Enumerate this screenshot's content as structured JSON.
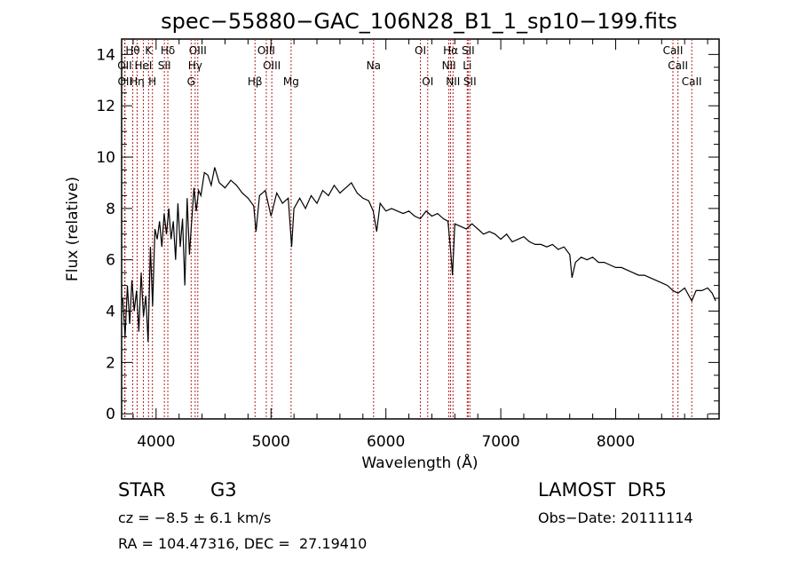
{
  "chart_data": {
    "type": "line",
    "title": "spec−55880−GAC_106N28_B1_1_sp10−199.fits",
    "xlabel": "Wavelength (Å)",
    "ylabel": "Flux (relative)",
    "xlim": [
      3700,
      8900
    ],
    "ylim": [
      -0.2,
      14.6
    ],
    "x_ticks": [
      4000,
      5000,
      6000,
      7000,
      8000
    ],
    "x_tick_labels": [
      "4000",
      "5000",
      "6000",
      "7000",
      "8000"
    ],
    "y_ticks": [
      0,
      2,
      4,
      6,
      8,
      10,
      12,
      14
    ],
    "y_tick_labels": [
      "0",
      "2",
      "4",
      "6",
      "8",
      "10",
      "12",
      "14"
    ],
    "line_color": "#000000",
    "marker_color": "#b22222",
    "spectrum": {
      "x": [
        3710,
        3730,
        3750,
        3770,
        3790,
        3810,
        3830,
        3850,
        3870,
        3890,
        3910,
        3930,
        3950,
        3970,
        3990,
        4010,
        4030,
        4050,
        4070,
        4090,
        4110,
        4130,
        4150,
        4170,
        4190,
        4210,
        4230,
        4250,
        4270,
        4290,
        4310,
        4330,
        4350,
        4370,
        4390,
        4420,
        4450,
        4480,
        4510,
        4550,
        4600,
        4650,
        4700,
        4750,
        4800,
        4850,
        4870,
        4900,
        4950,
        5000,
        5050,
        5100,
        5150,
        5180,
        5200,
        5250,
        5300,
        5350,
        5400,
        5450,
        5500,
        5550,
        5600,
        5650,
        5700,
        5750,
        5800,
        5850,
        5890,
        5920,
        5950,
        6000,
        6050,
        6100,
        6150,
        6200,
        6250,
        6300,
        6350,
        6400,
        6450,
        6500,
        6540,
        6563,
        6580,
        6600,
        6650,
        6700,
        6750,
        6800,
        6850,
        6900,
        6950,
        7000,
        7050,
        7100,
        7150,
        7200,
        7250,
        7300,
        7350,
        7400,
        7450,
        7500,
        7550,
        7600,
        7620,
        7650,
        7700,
        7750,
        7800,
        7850,
        7900,
        7950,
        8000,
        8050,
        8100,
        8150,
        8200,
        8250,
        8300,
        8350,
        8400,
        8450,
        8498,
        8542,
        8600,
        8662,
        8700,
        8750,
        8800,
        8840,
        8860,
        8870
      ],
      "y": [
        4.5,
        3.0,
        5.0,
        3.5,
        5.2,
        4.0,
        4.8,
        3.2,
        5.5,
        3.8,
        4.6,
        2.8,
        6.5,
        4.2,
        7.2,
        6.8,
        7.5,
        6.5,
        7.8,
        7.0,
        8.0,
        6.8,
        7.5,
        6.0,
        8.2,
        6.5,
        7.6,
        5.0,
        8.4,
        6.2,
        7.5,
        8.8,
        7.9,
        8.7,
        8.5,
        9.4,
        9.3,
        8.9,
        9.6,
        9.0,
        8.8,
        9.1,
        8.9,
        8.6,
        8.4,
        8.1,
        7.1,
        8.5,
        8.7,
        7.7,
        8.6,
        8.2,
        8.4,
        6.5,
        8.0,
        8.4,
        8.0,
        8.5,
        8.2,
        8.7,
        8.5,
        8.9,
        8.6,
        8.8,
        9.0,
        8.6,
        8.4,
        8.3,
        7.9,
        7.1,
        8.2,
        7.9,
        8.0,
        7.9,
        7.8,
        7.9,
        7.7,
        7.6,
        7.9,
        7.7,
        7.8,
        7.6,
        7.5,
        6.4,
        5.4,
        7.4,
        7.3,
        7.2,
        7.4,
        7.2,
        7.0,
        7.1,
        7.0,
        6.8,
        7.0,
        6.7,
        6.8,
        6.9,
        6.7,
        6.6,
        6.6,
        6.5,
        6.6,
        6.4,
        6.5,
        6.2,
        5.3,
        5.9,
        6.1,
        6.0,
        6.1,
        5.9,
        5.9,
        5.8,
        5.7,
        5.7,
        5.6,
        5.5,
        5.4,
        5.4,
        5.3,
        5.2,
        5.1,
        5.0,
        4.8,
        4.7,
        4.9,
        4.4,
        4.8,
        4.8,
        4.9,
        4.7,
        4.5,
        4.4
      ]
    },
    "annotations": [
      {
        "label": "Hθ",
        "x": 3797,
        "row": 0
      },
      {
        "label": "K",
        "x": 3934,
        "row": 0
      },
      {
        "label": "Hδ",
        "x": 4102,
        "row": 0
      },
      {
        "label": "OIII",
        "x": 4363,
        "row": 0
      },
      {
        "label": "OIII",
        "x": 4959,
        "row": 0
      },
      {
        "label": "OI",
        "x": 6300,
        "row": 0
      },
      {
        "label": "Hα",
        "x": 6563,
        "row": 0
      },
      {
        "label": "SII",
        "x": 6716,
        "row": 0
      },
      {
        "label": "CaII",
        "x": 8498,
        "row": 0
      },
      {
        "label": "OII",
        "x": 3727,
        "row": 1
      },
      {
        "label": "HeI",
        "x": 3889,
        "row": 1
      },
      {
        "label": "SII",
        "x": 4072,
        "row": 1
      },
      {
        "label": "Hγ",
        "x": 4340,
        "row": 1
      },
      {
        "label": "OIII",
        "x": 5007,
        "row": 1
      },
      {
        "label": "NII",
        "x": 6548,
        "row": 1
      },
      {
        "label": "Li",
        "x": 6708,
        "row": 1
      },
      {
        "label": "CaII",
        "x": 8542,
        "row": 1
      },
      {
        "label": "OII",
        "x": 3729,
        "row": 2
      },
      {
        "label": "Hη",
        "x": 3835,
        "row": 2
      },
      {
        "label": "H",
        "x": 3968,
        "row": 2
      },
      {
        "label": "G",
        "x": 4305,
        "row": 2
      },
      {
        "label": "Hβ",
        "x": 4861,
        "row": 2
      },
      {
        "label": "Mg",
        "x": 5175,
        "row": 2
      },
      {
        "label": "Na",
        "x": 5893,
        "row": 1
      },
      {
        "label": "OI",
        "x": 6364,
        "row": 2
      },
      {
        "label": "NII",
        "x": 6584,
        "row": 2
      },
      {
        "label": "SII",
        "x": 6731,
        "row": 2
      },
      {
        "label": "CaII",
        "x": 8662,
        "row": 2
      }
    ],
    "marker_lines_x": [
      3727,
      3729,
      3797,
      3835,
      3889,
      3934,
      3968,
      4072,
      4102,
      4305,
      4340,
      4363,
      4861,
      4959,
      5007,
      5175,
      5893,
      6300,
      6364,
      6548,
      6563,
      6584,
      6708,
      6716,
      6731,
      8498,
      8542,
      8662
    ]
  },
  "info": {
    "object_class": "STAR",
    "subclass": "G3",
    "survey": "LAMOST  DR5",
    "cz": "cz = −8.5 ± 6.1 km/s",
    "obs_date": "Obs−Date: 20111114",
    "coords": "RA = 104.47316, DEC =  27.19410"
  }
}
